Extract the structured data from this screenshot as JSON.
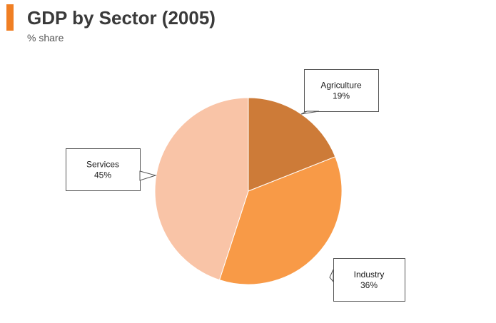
{
  "header": {
    "title": "GDP by Sector (2005)",
    "subtitle": "% share",
    "accent_color": "#f07f24"
  },
  "chart_data": {
    "type": "pie",
    "title": "GDP by Sector (2005)",
    "subtitle": "% share",
    "unit": "%",
    "slices": [
      {
        "label": "Agriculture",
        "value": 19,
        "display": "19%",
        "color": "#cd7b38"
      },
      {
        "label": "Industry",
        "value": 36,
        "display": "36%",
        "color": "#f89a47"
      },
      {
        "label": "Services",
        "value": 45,
        "display": "45%",
        "color": "#f9c4a7"
      }
    ]
  }
}
